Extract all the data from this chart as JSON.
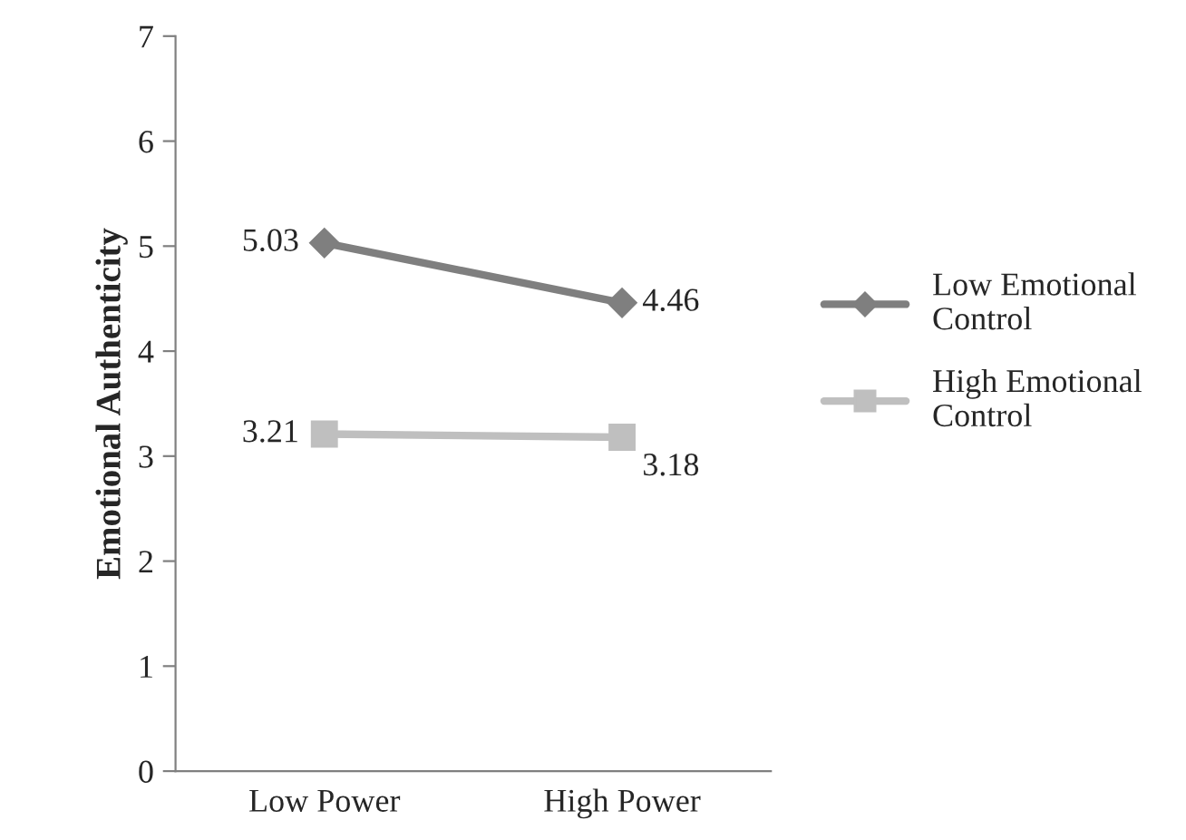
{
  "chart_data": {
    "type": "line",
    "ylabel": "Emotional Authenticity",
    "categories": [
      "Low Power",
      "High Power"
    ],
    "series": [
      {
        "name": "Low Emotional Control",
        "color": "#7f7f7f",
        "marker": "diamond",
        "values": [
          5.03,
          4.46
        ]
      },
      {
        "name": "High Emotional Control",
        "color": "#bfbfbf",
        "marker": "square",
        "values": [
          3.21,
          3.18
        ]
      }
    ],
    "ylim": [
      0,
      7
    ],
    "yticks": [
      0,
      1,
      2,
      3,
      4,
      5,
      6,
      7
    ],
    "grid": false,
    "legend": "right",
    "data_labels": true,
    "line_style": "solid"
  }
}
